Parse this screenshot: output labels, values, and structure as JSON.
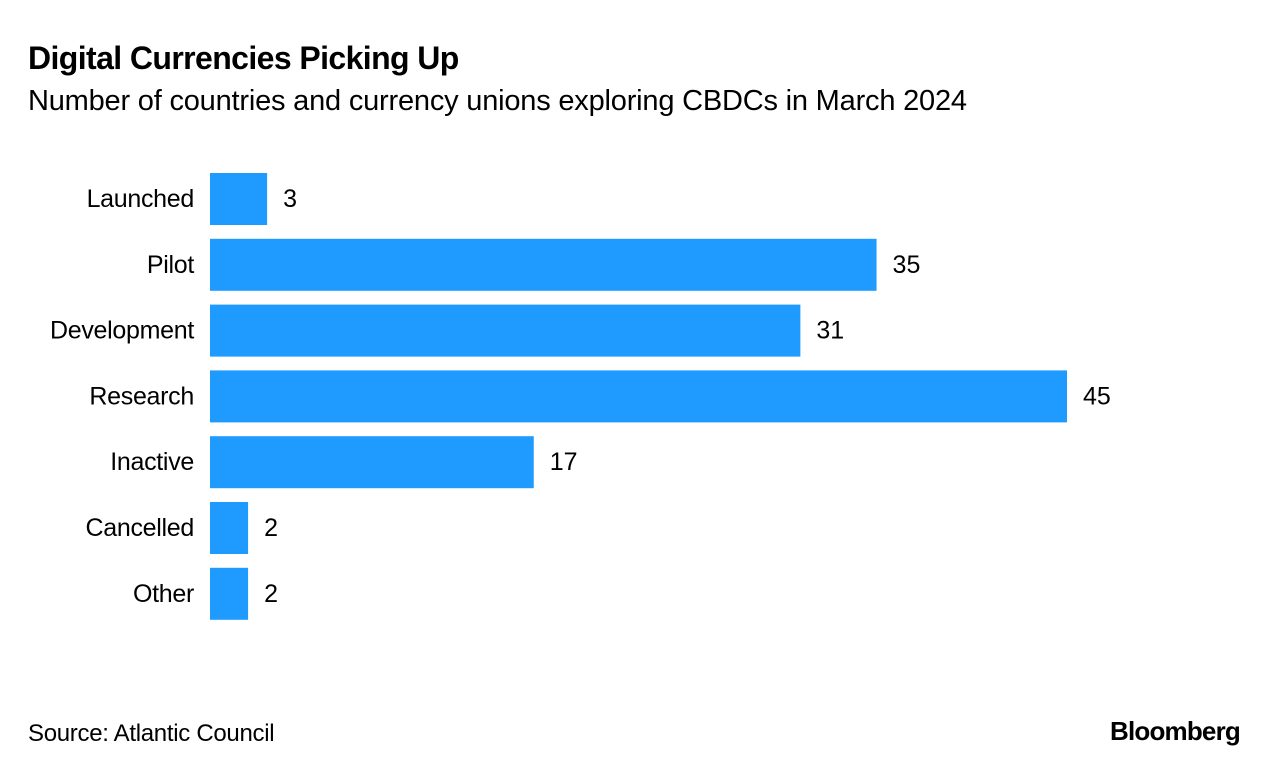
{
  "chart_data": {
    "type": "bar",
    "orientation": "horizontal",
    "title": "Digital Currencies Picking Up",
    "subtitle": "Number of countries and currency unions exploring CBDCs in March 2024",
    "categories": [
      "Launched",
      "Pilot",
      "Development",
      "Research",
      "Inactive",
      "Cancelled",
      "Other"
    ],
    "values": [
      3,
      35,
      31,
      45,
      17,
      2,
      2
    ],
    "xlabel": "",
    "ylabel": "",
    "xlim": [
      0,
      45
    ],
    "grid": false,
    "legend": "none",
    "bar_color": "#1f9bff",
    "data_labels": true
  },
  "footer": {
    "source": "Source: Atlantic Council",
    "brand": "Bloomberg"
  }
}
